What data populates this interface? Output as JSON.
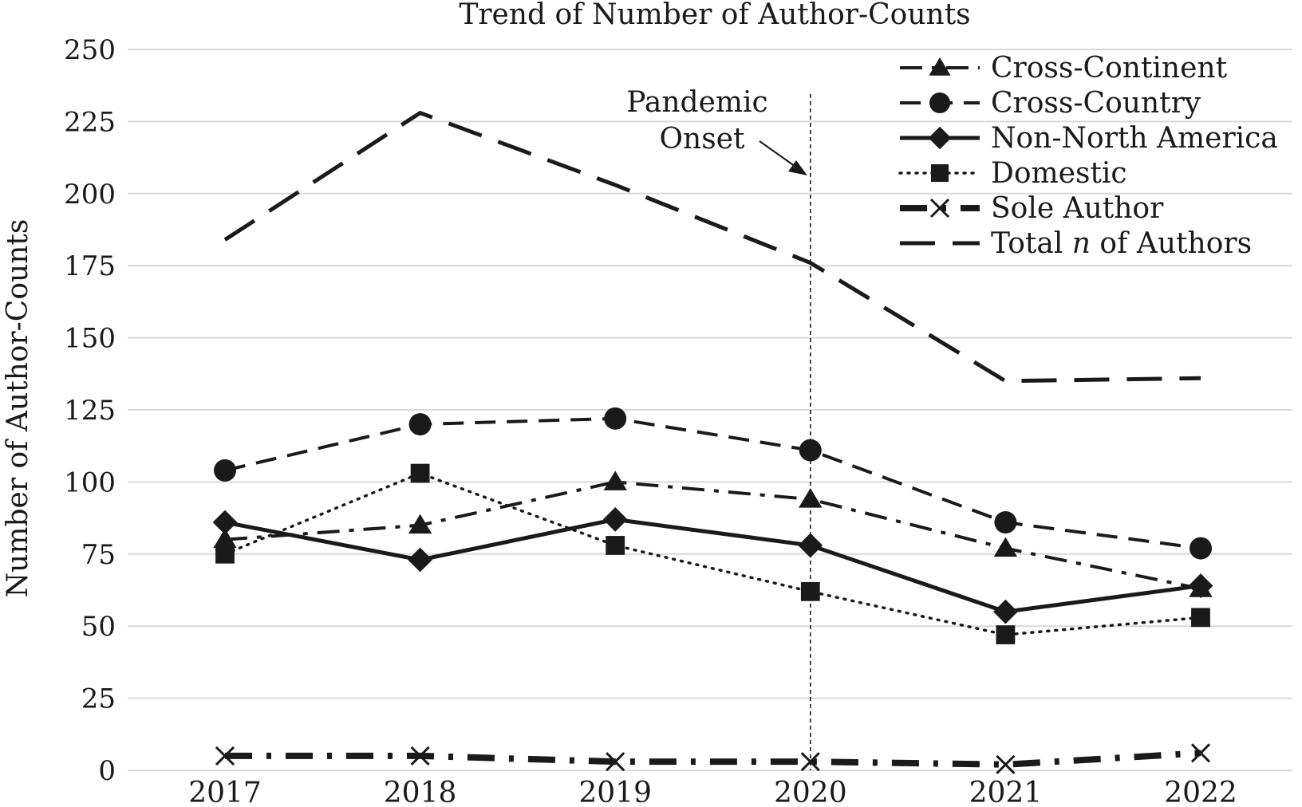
{
  "chart_data": {
    "type": "line",
    "title": "Trend of Number of Author-Counts",
    "xlabel": "",
    "ylabel": "Number of Author-Counts",
    "categories": [
      "2017",
      "2018",
      "2019",
      "2020",
      "2021",
      "2022"
    ],
    "ylim": [
      0,
      250
    ],
    "yticks": [
      "0",
      "25",
      "50",
      "75",
      "100",
      "125",
      "150",
      "175",
      "200",
      "225",
      "250"
    ],
    "grid": true,
    "legend_position": "top-right",
    "annotation": {
      "line1": "Pandemic",
      "line2": "Onset",
      "x": "2020"
    },
    "series": [
      {
        "name": "Cross-Continent",
        "marker": "triangle",
        "style": "dash-dot",
        "values": [
          80,
          85,
          100,
          94,
          77,
          63
        ]
      },
      {
        "name": "Cross-Country",
        "marker": "circle",
        "style": "dashed",
        "values": [
          104,
          120,
          122,
          111,
          86,
          77
        ]
      },
      {
        "name": "Non-North America",
        "marker": "diamond",
        "style": "solid",
        "values": [
          86,
          73,
          87,
          78,
          55,
          64
        ]
      },
      {
        "name": "Domestic",
        "marker": "square",
        "style": "dotted",
        "values": [
          75,
          103,
          78,
          62,
          47,
          53
        ]
      },
      {
        "name": "Sole Author",
        "marker": "x",
        "style": "dash-dot-heavy",
        "values": [
          5,
          5,
          3,
          3,
          2,
          6
        ]
      },
      {
        "name": "Total n of Authors",
        "name_prefix": "Total ",
        "name_italic": "n",
        "name_suffix": " of Authors",
        "marker": "none",
        "style": "long-dash",
        "values": [
          184,
          228,
          203,
          176,
          135,
          136
        ]
      }
    ]
  }
}
